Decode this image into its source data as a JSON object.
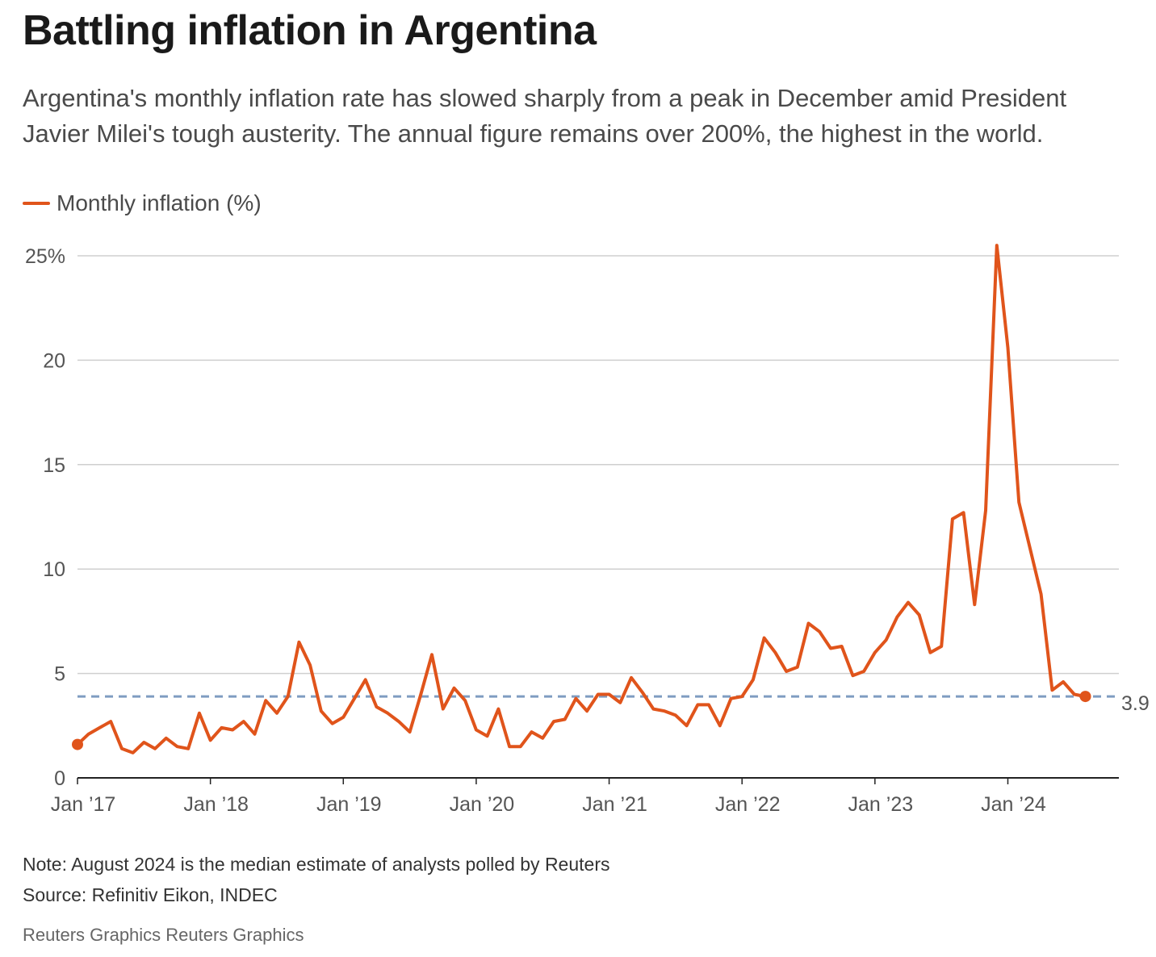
{
  "header": {
    "title": "Battling inflation in Argentina",
    "subtitle": "Argentina's monthly inflation rate has slowed sharply from a peak in December amid President Javier Milei's tough austerity. The annual figure remains over 200%, the highest in the world."
  },
  "footer": {
    "note": "Note: August 2024 is the median estimate of analysts polled by Reuters",
    "source": "Source: Refinitiv Eikon, INDEC",
    "credit": "Reuters Graphics Reuters Graphics"
  },
  "colors": {
    "line": "#e0541b",
    "reference": "#7f9cc1",
    "grid": "#cfcfcf",
    "axis": "#222222"
  },
  "chart_data": {
    "type": "line",
    "legend": {
      "position": "top-left",
      "label": "Monthly inflation (%)"
    },
    "grid": true,
    "ylim": [
      0,
      25
    ],
    "yticks": [
      {
        "value": 0,
        "label": "0"
      },
      {
        "value": 5,
        "label": "5"
      },
      {
        "value": 10,
        "label": "10"
      },
      {
        "value": 15,
        "label": "15"
      },
      {
        "value": 20,
        "label": "20"
      },
      {
        "value": 25,
        "label": "25%"
      }
    ],
    "xlim": [
      "2017-01",
      "2024-08"
    ],
    "xticks": [
      {
        "x": "2017-01",
        "label": "Jan ’17"
      },
      {
        "x": "2018-01",
        "label": "Jan ’18"
      },
      {
        "x": "2019-01",
        "label": "Jan ’19"
      },
      {
        "x": "2020-01",
        "label": "Jan ’20"
      },
      {
        "x": "2021-01",
        "label": "Jan ’21"
      },
      {
        "x": "2022-01",
        "label": "Jan ’22"
      },
      {
        "x": "2023-01",
        "label": "Jan ’23"
      },
      {
        "x": "2024-01",
        "label": "Jan ’24"
      }
    ],
    "reference_line": {
      "value": 3.9,
      "label": "3.9",
      "style": "dashed"
    },
    "series": [
      {
        "name": "Monthly inflation (%)",
        "x": [
          "2017-01",
          "2017-02",
          "2017-03",
          "2017-04",
          "2017-05",
          "2017-06",
          "2017-07",
          "2017-08",
          "2017-09",
          "2017-10",
          "2017-11",
          "2017-12",
          "2018-01",
          "2018-02",
          "2018-03",
          "2018-04",
          "2018-05",
          "2018-06",
          "2018-07",
          "2018-08",
          "2018-09",
          "2018-10",
          "2018-11",
          "2018-12",
          "2019-01",
          "2019-02",
          "2019-03",
          "2019-04",
          "2019-05",
          "2019-06",
          "2019-07",
          "2019-08",
          "2019-09",
          "2019-10",
          "2019-11",
          "2019-12",
          "2020-01",
          "2020-02",
          "2020-03",
          "2020-04",
          "2020-05",
          "2020-06",
          "2020-07",
          "2020-08",
          "2020-09",
          "2020-10",
          "2020-11",
          "2020-12",
          "2021-01",
          "2021-02",
          "2021-03",
          "2021-04",
          "2021-05",
          "2021-06",
          "2021-07",
          "2021-08",
          "2021-09",
          "2021-10",
          "2021-11",
          "2021-12",
          "2022-01",
          "2022-02",
          "2022-03",
          "2022-04",
          "2022-05",
          "2022-06",
          "2022-07",
          "2022-08",
          "2022-09",
          "2022-10",
          "2022-11",
          "2022-12",
          "2023-01",
          "2023-02",
          "2023-03",
          "2023-04",
          "2023-05",
          "2023-06",
          "2023-07",
          "2023-08",
          "2023-09",
          "2023-10",
          "2023-11",
          "2023-12",
          "2024-01",
          "2024-02",
          "2024-03",
          "2024-04",
          "2024-05",
          "2024-06",
          "2024-07",
          "2024-08"
        ],
        "values": [
          1.6,
          2.1,
          2.4,
          2.7,
          1.4,
          1.2,
          1.7,
          1.4,
          1.9,
          1.5,
          1.4,
          3.1,
          1.8,
          2.4,
          2.3,
          2.7,
          2.1,
          3.7,
          3.1,
          3.9,
          6.5,
          5.4,
          3.2,
          2.6,
          2.9,
          3.8,
          4.7,
          3.4,
          3.1,
          2.7,
          2.2,
          4.0,
          5.9,
          3.3,
          4.3,
          3.7,
          2.3,
          2.0,
          3.3,
          1.5,
          1.5,
          2.2,
          1.9,
          2.7,
          2.8,
          3.8,
          3.2,
          4.0,
          4.0,
          3.6,
          4.8,
          4.1,
          3.3,
          3.2,
          3.0,
          2.5,
          3.5,
          3.5,
          2.5,
          3.8,
          3.9,
          4.7,
          6.7,
          6.0,
          5.1,
          5.3,
          7.4,
          7.0,
          6.2,
          6.3,
          4.9,
          5.1,
          6.0,
          6.6,
          7.7,
          8.4,
          7.8,
          6.0,
          6.3,
          12.4,
          12.7,
          8.3,
          12.8,
          25.5,
          20.6,
          13.2,
          11.0,
          8.8,
          4.2,
          4.6,
          4.0,
          3.9
        ]
      }
    ]
  }
}
